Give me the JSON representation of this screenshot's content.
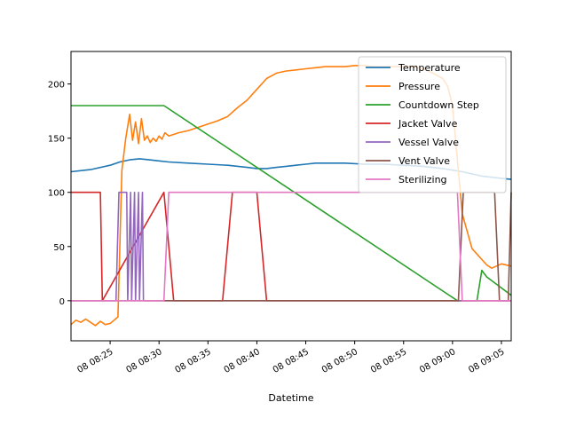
{
  "chart_data": {
    "type": "line",
    "title": "",
    "xlabel": "Datetime",
    "ylabel": "",
    "xlim_minutes": [
      0,
      45
    ],
    "ylim": [
      -37,
      230
    ],
    "x_ticks": [
      {
        "label": "08 08:25",
        "minute": 4
      },
      {
        "label": "08 08:30",
        "minute": 9
      },
      {
        "label": "08 08:35",
        "minute": 14
      },
      {
        "label": "08 08:40",
        "minute": 19
      },
      {
        "label": "08 08:45",
        "minute": 24
      },
      {
        "label": "08 08:50",
        "minute": 29
      },
      {
        "label": "08 08:55",
        "minute": 34
      },
      {
        "label": "08 09:00",
        "minute": 39
      },
      {
        "label": "08 09:05",
        "minute": 44
      }
    ],
    "y_ticks": [
      0,
      50,
      100,
      150,
      200
    ],
    "grid": false,
    "legend_position": "top-right",
    "series": [
      {
        "name": "Temperature",
        "color": "#1f77b4",
        "x": [
          0,
          2,
          4,
          5,
          6,
          7,
          8,
          9,
          10,
          12,
          14,
          16,
          18,
          19,
          20,
          21,
          22,
          23,
          24,
          25,
          26,
          28,
          30,
          32,
          34,
          36,
          38,
          40,
          42,
          44,
          45
        ],
        "y": [
          119,
          121,
          125,
          128,
          130,
          131,
          130,
          129,
          128,
          127,
          126,
          125,
          123,
          122,
          122,
          123,
          124,
          125,
          126,
          127,
          127,
          127,
          126,
          126,
          125,
          124,
          122,
          119,
          115,
          113,
          112
        ]
      },
      {
        "name": "Pressure",
        "color": "#ff7f0e",
        "x": [
          0,
          0.5,
          1,
          1.5,
          2,
          2.5,
          3,
          3.5,
          4,
          4.4,
          4.8,
          5.2,
          5.6,
          6,
          6.3,
          6.6,
          6.9,
          7.2,
          7.5,
          7.8,
          8.1,
          8.4,
          8.7,
          9,
          9.3,
          9.6,
          10,
          11,
          12,
          13,
          14,
          15,
          16,
          17,
          18,
          19,
          20,
          21,
          22,
          23,
          24,
          25,
          26,
          27,
          28,
          29,
          30,
          31,
          32,
          33,
          34,
          35,
          36,
          37,
          38,
          38.5,
          39,
          39.3,
          39.7,
          40,
          41,
          42,
          42.5,
          43,
          44,
          45
        ],
        "y": [
          -22,
          -18,
          -20,
          -17,
          -20,
          -23,
          -19,
          -22,
          -21,
          -18,
          -15,
          120,
          150,
          172,
          148,
          165,
          145,
          168,
          148,
          152,
          146,
          150,
          147,
          152,
          149,
          155,
          152,
          155,
          157,
          160,
          163,
          166,
          170,
          178,
          185,
          195,
          205,
          210,
          212,
          213,
          214,
          215,
          216,
          216,
          216,
          217,
          217,
          216,
          216,
          216,
          216,
          216,
          214,
          210,
          205,
          198,
          180,
          150,
          110,
          80,
          48,
          38,
          33,
          30,
          34,
          32
        ]
      },
      {
        "name": "Countdown Step",
        "color": "#2ca02c",
        "x": [
          0,
          9.5,
          39.5,
          40,
          41.5,
          42,
          42.5,
          45
        ],
        "y": [
          180,
          180,
          0,
          0,
          0,
          28,
          22,
          5
        ]
      },
      {
        "name": "Jacket Valve",
        "color": "#d62728",
        "x": [
          0,
          3,
          3.2,
          9.5,
          10.5,
          15.5,
          16.5,
          19,
          20,
          45
        ],
        "y": [
          100,
          100,
          0,
          100,
          0,
          0,
          100,
          100,
          0,
          0
        ]
      },
      {
        "name": "Vessel Valve",
        "color": "#9467bd",
        "x": [
          0,
          4.6,
          4.9,
          5.7,
          5.8,
          6.1,
          6.2,
          6.5,
          6.6,
          6.9,
          7.0,
          7.3,
          7.4,
          45
        ],
        "y": [
          0,
          0,
          100,
          100,
          0,
          100,
          0,
          100,
          0,
          100,
          0,
          100,
          0,
          0
        ]
      },
      {
        "name": "Vent Valve",
        "color": "#8c564b",
        "x": [
          0,
          39.6,
          40.1,
          43.3,
          43.8,
          44.7,
          45
        ],
        "y": [
          0,
          0,
          100,
          100,
          0,
          0,
          100
        ]
      },
      {
        "name": "Sterilizing",
        "color": "#e377c2",
        "x": [
          0,
          9.5,
          10,
          39.5,
          40,
          45
        ],
        "y": [
          0,
          0,
          100,
          100,
          0,
          0
        ]
      }
    ]
  }
}
